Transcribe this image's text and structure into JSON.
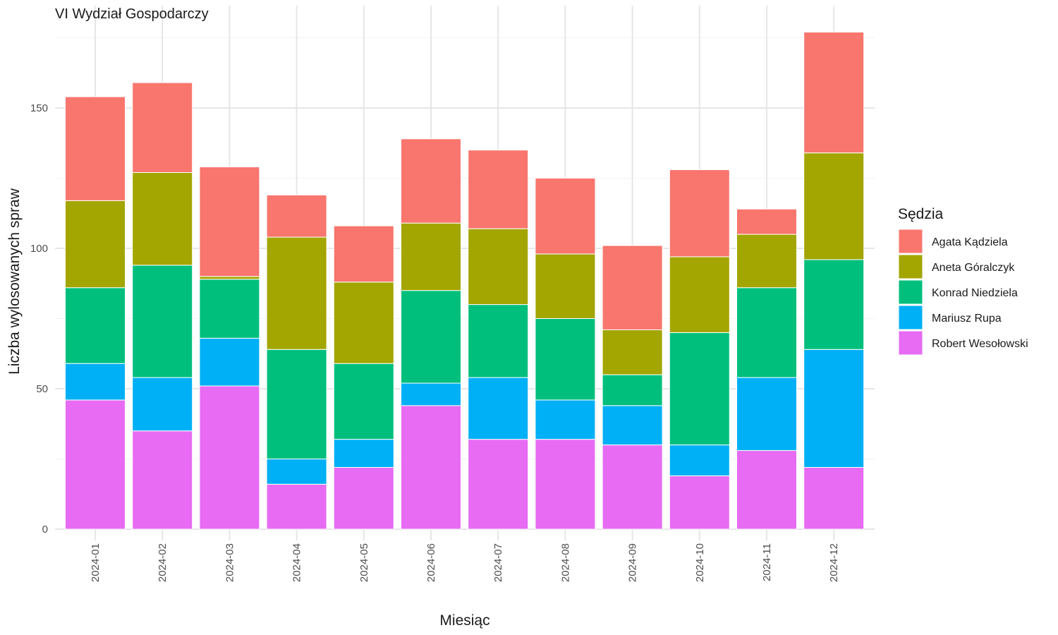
{
  "chart_data": {
    "type": "bar",
    "stacked": true,
    "title": "VI Wydział Gospodarczy",
    "xlabel": "Miesiąc",
    "ylabel": "Liczba wylosowanych spraw",
    "legend_title": "Sędzia",
    "legend_position": "right",
    "grid": true,
    "ylim": [
      0,
      180
    ],
    "yticks": [
      0,
      50,
      100,
      150
    ],
    "categories": [
      "2024-01",
      "2024-02",
      "2024-03",
      "2024-04",
      "2024-05",
      "2024-06",
      "2024-07",
      "2024-08",
      "2024-09",
      "2024-10",
      "2024-11",
      "2024-12"
    ],
    "series": [
      {
        "name": "Robert Wesołowski",
        "color": "#E76BF3",
        "values": [
          46,
          35,
          51,
          16,
          22,
          44,
          32,
          32,
          30,
          19,
          28,
          22
        ]
      },
      {
        "name": "Mariusz Rupa",
        "color": "#00B0F6",
        "values": [
          13,
          19,
          17,
          9,
          10,
          8,
          22,
          14,
          14,
          11,
          26,
          42
        ]
      },
      {
        "name": "Konrad Niedziela",
        "color": "#00BF7D",
        "values": [
          27,
          40,
          21,
          39,
          27,
          33,
          26,
          29,
          11,
          40,
          32,
          32
        ]
      },
      {
        "name": "Aneta Góralczyk",
        "color": "#A3A500",
        "values": [
          31,
          33,
          1,
          40,
          29,
          24,
          27,
          23,
          16,
          27,
          19,
          38
        ]
      },
      {
        "name": "Agata Kądziela",
        "color": "#F8766D",
        "values": [
          37,
          32,
          39,
          15,
          20,
          30,
          28,
          27,
          30,
          31,
          9,
          43
        ]
      }
    ],
    "legend_order": [
      "Agata Kądziela",
      "Aneta Góralczyk",
      "Konrad Niedziela",
      "Mariusz Rupa",
      "Robert Wesołowski"
    ]
  }
}
